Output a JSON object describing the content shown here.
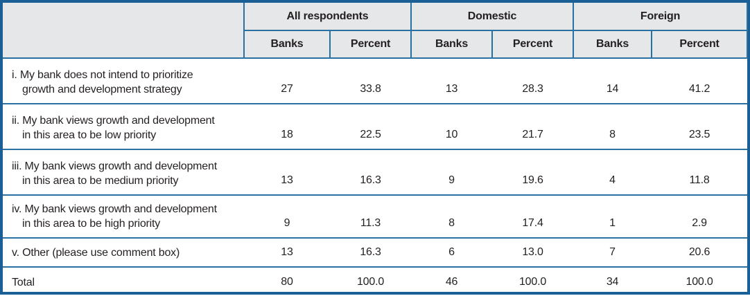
{
  "colors": {
    "outer_border": "#1a6096",
    "inner_line": "#2a71a3",
    "header_bg": "#e6e7e8",
    "text": "#231f20"
  },
  "header": {
    "groups": [
      "All respondents",
      "Domestic",
      "Foreign"
    ],
    "subheaders": [
      "Banks",
      "Percent",
      "Banks",
      "Percent",
      "Banks",
      "Percent"
    ]
  },
  "rows": [
    {
      "label_lines": [
        "i. My bank does not intend to prioritize",
        "growth and development strategy"
      ],
      "values": [
        "27",
        "33.8",
        "13",
        "28.3",
        "14",
        "41.2"
      ]
    },
    {
      "label_lines": [
        "ii. My bank views growth and development",
        "in this area to be low priority"
      ],
      "values": [
        "18",
        "22.5",
        "10",
        "21.7",
        "8",
        "23.5"
      ]
    },
    {
      "label_lines": [
        "iii. My bank views growth and development",
        "in this area to be medium priority"
      ],
      "values": [
        "13",
        "16.3",
        "9",
        "19.6",
        "4",
        "11.8"
      ]
    },
    {
      "label_lines": [
        "iv. My bank views growth and development",
        "in this area to be high priority"
      ],
      "values": [
        "9",
        "11.3",
        "8",
        "17.4",
        "1",
        "2.9"
      ]
    },
    {
      "label_lines": [
        "v. Other (please use comment box)"
      ],
      "values": [
        "13",
        "16.3",
        "6",
        "13.0",
        "7",
        "20.6"
      ]
    },
    {
      "label_lines": [
        "Total"
      ],
      "values": [
        "80",
        "100.0",
        "46",
        "100.0",
        "34",
        "100.0"
      ]
    }
  ],
  "chart_data": {
    "type": "table",
    "title": "",
    "column_groups": [
      "All respondents",
      "Domestic",
      "Foreign"
    ],
    "columns": [
      "Banks",
      "Percent",
      "Banks",
      "Percent",
      "Banks",
      "Percent"
    ],
    "rows": [
      {
        "label": "i. My bank does not intend to prioritize growth and development strategy",
        "values": [
          27,
          33.8,
          13,
          28.3,
          14,
          41.2
        ]
      },
      {
        "label": "ii. My bank views growth and development in this area to be low priority",
        "values": [
          18,
          22.5,
          10,
          21.7,
          8,
          23.5
        ]
      },
      {
        "label": "iii. My bank views growth and development in this area to be medium priority",
        "values": [
          13,
          16.3,
          9,
          19.6,
          4,
          11.8
        ]
      },
      {
        "label": "iv. My bank views growth and development in this area to be high priority",
        "values": [
          9,
          11.3,
          8,
          17.4,
          1,
          2.9
        ]
      },
      {
        "label": "v. Other (please use comment box)",
        "values": [
          13,
          16.3,
          6,
          13.0,
          7,
          20.6
        ]
      },
      {
        "label": "Total",
        "values": [
          80,
          100.0,
          46,
          100.0,
          34,
          100.0
        ]
      }
    ]
  }
}
